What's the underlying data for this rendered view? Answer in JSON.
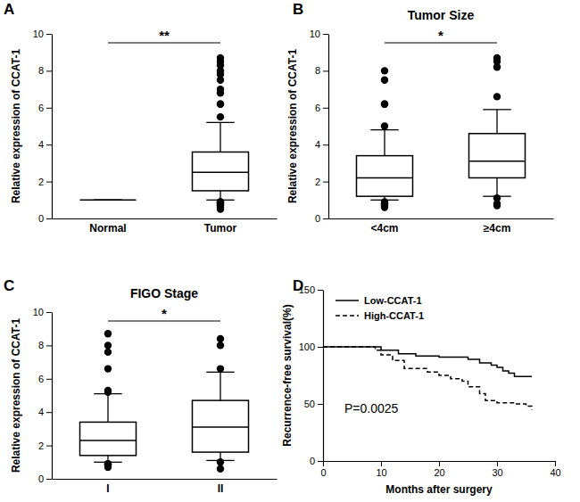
{
  "chart_data": [
    {
      "type": "box",
      "panel_label": "A",
      "y_label": "Relative expression of CCAT-1",
      "categories": [
        "Normal",
        "Tumor"
      ],
      "boxes": [
        {
          "whisker_low": 1,
          "q1": 1,
          "median": 1,
          "q3": 1,
          "whisker_high": 1,
          "outliers": []
        },
        {
          "whisker_low": 1.0,
          "q1": 1.5,
          "median": 2.5,
          "q3": 3.6,
          "whisker_high": 5.2,
          "outliers": [
            0.5,
            0.6,
            0.7,
            0.75,
            0.8,
            0.85,
            0.9,
            0.9,
            5.5,
            6.2,
            6.2,
            6.8,
            7.0,
            7.5,
            7.8,
            8.0,
            8.3,
            8.5,
            8.7
          ]
        }
      ],
      "annotation": "**",
      "ylim": [
        0,
        10
      ],
      "yticks": [
        0,
        2,
        4,
        6,
        8,
        10
      ]
    },
    {
      "type": "box",
      "panel_label": "B",
      "title": "Tumor Size",
      "y_label": "Relative expression of CCAT-1",
      "categories": [
        "<4cm",
        "≥4cm"
      ],
      "boxes": [
        {
          "whisker_low": 1.0,
          "q1": 1.2,
          "median": 2.2,
          "q3": 3.4,
          "whisker_high": 4.8,
          "outliers": [
            0.6,
            0.7,
            0.8,
            0.8,
            0.9,
            5.0,
            6.2,
            6.2,
            7.5,
            8.0
          ]
        },
        {
          "whisker_low": 1.2,
          "q1": 2.2,
          "median": 3.1,
          "q3": 4.6,
          "whisker_high": 5.9,
          "outliers": [
            0.7,
            0.8,
            1.1,
            6.6,
            8.2,
            8.5,
            8.7
          ]
        }
      ],
      "annotation": "*",
      "ylim": [
        0,
        10
      ],
      "yticks": [
        0,
        2,
        4,
        6,
        8,
        10
      ]
    },
    {
      "type": "box",
      "panel_label": "C",
      "title": "FIGO Stage",
      "y_label": "Relative expression of CCAT-1",
      "categories": [
        "I",
        "II"
      ],
      "boxes": [
        {
          "whisker_low": 1.0,
          "q1": 1.4,
          "median": 2.3,
          "q3": 3.4,
          "whisker_high": 5.1,
          "outliers": [
            0.7,
            0.8,
            0.8,
            0.9,
            0.9,
            5.2,
            5.3,
            6.6,
            7.6,
            8.0,
            8.7
          ]
        },
        {
          "whisker_low": 1.1,
          "q1": 1.6,
          "median": 3.1,
          "q3": 4.7,
          "whisker_high": 6.4,
          "outliers": [
            0.6,
            1.0,
            6.6,
            8.0,
            8.4
          ]
        }
      ],
      "annotation": "*",
      "ylim": [
        0,
        10
      ],
      "yticks": [
        0,
        2,
        4,
        6,
        8,
        10
      ]
    },
    {
      "type": "line",
      "panel_label": "D",
      "x_label": "Months after surgery",
      "y_label": "Recurrence-free survival(%)",
      "annotation": "P=0.0025",
      "legend": "upper left",
      "series": [
        {
          "name": "Low-CCAT-1",
          "color": "#000000",
          "line_style": "solid",
          "x": [
            0,
            10,
            13,
            16,
            20,
            25,
            27,
            29,
            30,
            31,
            32,
            33,
            36
          ],
          "values": [
            100,
            97,
            94,
            92,
            91,
            89,
            86,
            84,
            82,
            79,
            77,
            74,
            74
          ]
        },
        {
          "name": "High-CCAT-1",
          "color": "#000000",
          "line_style": "dashed",
          "x": [
            0,
            9,
            10,
            12,
            14,
            18,
            20,
            22,
            24,
            25,
            27,
            28,
            30,
            33,
            35,
            36
          ],
          "values": [
            100,
            97,
            93,
            88,
            81,
            78,
            75,
            72,
            70,
            65,
            59,
            53,
            51,
            50,
            48,
            45
          ]
        }
      ],
      "xlim": [
        0,
        40
      ],
      "xticks": [
        0,
        10,
        20,
        30,
        40
      ],
      "ylim": [
        0,
        150
      ],
      "yticks": [
        0,
        50,
        100,
        150
      ]
    }
  ]
}
